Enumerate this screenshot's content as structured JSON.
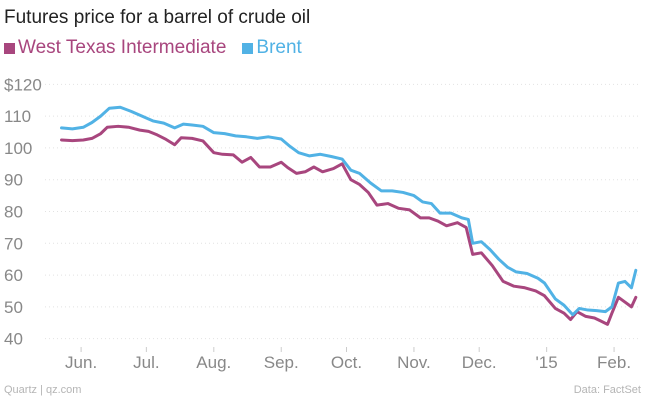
{
  "chart_data": {
    "type": "line",
    "title": "Futures price for a barrel of crude oil",
    "ylim": [
      38,
      122
    ],
    "xlim": [
      "2014-05-20",
      "2015-02-12"
    ],
    "ytick_values": [
      40,
      50,
      60,
      70,
      80,
      90,
      100,
      110,
      120
    ],
    "ytick_labels": [
      "40",
      "50",
      "60",
      "70",
      "80",
      "90",
      "100",
      "110",
      "$120"
    ],
    "xticks": [
      {
        "label": "Jun.",
        "date": "2014-06-01"
      },
      {
        "label": "Jul.",
        "date": "2014-07-01"
      },
      {
        "label": "Aug.",
        "date": "2014-08-01"
      },
      {
        "label": "Sep.",
        "date": "2014-09-01"
      },
      {
        "label": "Oct.",
        "date": "2014-10-01"
      },
      {
        "label": "Nov.",
        "date": "2014-11-01"
      },
      {
        "label": "Dec.",
        "date": "2014-12-01"
      },
      {
        "label": "'15",
        "date": "2015-01-01"
      },
      {
        "label": "Feb.",
        "date": "2015-02-01"
      }
    ],
    "grid": "horizontal",
    "legend_position": "top-left",
    "series": [
      {
        "name": "West Texas Intermediate",
        "color": "#a8467e",
        "points": [
          [
            "2014-05-23",
            102.5
          ],
          [
            "2014-05-28",
            102.3
          ],
          [
            "2014-06-02",
            102.5
          ],
          [
            "2014-06-06",
            103.0
          ],
          [
            "2014-06-10",
            104.5
          ],
          [
            "2014-06-13",
            106.5
          ],
          [
            "2014-06-18",
            106.8
          ],
          [
            "2014-06-23",
            106.5
          ],
          [
            "2014-06-28",
            105.6
          ],
          [
            "2014-07-02",
            105.2
          ],
          [
            "2014-07-06",
            104.1
          ],
          [
            "2014-07-10",
            102.7
          ],
          [
            "2014-07-14",
            101.0
          ],
          [
            "2014-07-17",
            103.2
          ],
          [
            "2014-07-22",
            103.0
          ],
          [
            "2014-07-27",
            102.2
          ],
          [
            "2014-08-01",
            98.5
          ],
          [
            "2014-08-05",
            98.0
          ],
          [
            "2014-08-10",
            97.8
          ],
          [
            "2014-08-14",
            95.5
          ],
          [
            "2014-08-18",
            97.0
          ],
          [
            "2014-08-22",
            94.0
          ],
          [
            "2014-08-27",
            94.0
          ],
          [
            "2014-09-01",
            95.5
          ],
          [
            "2014-09-04",
            93.8
          ],
          [
            "2014-09-08",
            92.0
          ],
          [
            "2014-09-12",
            92.5
          ],
          [
            "2014-09-16",
            94.0
          ],
          [
            "2014-09-20",
            92.5
          ],
          [
            "2014-09-25",
            93.5
          ],
          [
            "2014-09-29",
            95.0
          ],
          [
            "2014-10-03",
            90.0
          ],
          [
            "2014-10-07",
            88.5
          ],
          [
            "2014-10-11",
            86.0
          ],
          [
            "2014-10-15",
            82.0
          ],
          [
            "2014-10-20",
            82.5
          ],
          [
            "2014-10-25",
            81.0
          ],
          [
            "2014-10-30",
            80.5
          ],
          [
            "2014-11-04",
            78.0
          ],
          [
            "2014-11-08",
            78.0
          ],
          [
            "2014-11-12",
            77.0
          ],
          [
            "2014-11-16",
            75.5
          ],
          [
            "2014-11-21",
            76.5
          ],
          [
            "2014-11-25",
            75.0
          ],
          [
            "2014-11-28",
            66.5
          ],
          [
            "2014-12-02",
            67.0
          ],
          [
            "2014-12-07",
            63.0
          ],
          [
            "2014-12-12",
            58.0
          ],
          [
            "2014-12-17",
            56.5
          ],
          [
            "2014-12-22",
            56.0
          ],
          [
            "2014-12-27",
            55.0
          ],
          [
            "2014-12-31",
            53.5
          ],
          [
            "2015-01-05",
            49.5
          ],
          [
            "2015-01-09",
            48.0
          ],
          [
            "2015-01-12",
            46.0
          ],
          [
            "2015-01-15",
            48.5
          ],
          [
            "2015-01-19",
            47.0
          ],
          [
            "2015-01-23",
            46.5
          ],
          [
            "2015-01-26",
            45.5
          ],
          [
            "2015-01-29",
            44.5
          ],
          [
            "2015-01-31",
            48.0
          ],
          [
            "2015-02-03",
            53.0
          ],
          [
            "2015-02-06",
            51.5
          ],
          [
            "2015-02-09",
            50.0
          ],
          [
            "2015-02-11",
            53.0
          ]
        ]
      },
      {
        "name": "Brent",
        "color": "#51b2e5",
        "points": [
          [
            "2014-05-23",
            106.3
          ],
          [
            "2014-05-28",
            106.0
          ],
          [
            "2014-06-02",
            106.5
          ],
          [
            "2014-06-06",
            108.0
          ],
          [
            "2014-06-10",
            110.0
          ],
          [
            "2014-06-14",
            112.5
          ],
          [
            "2014-06-19",
            112.8
          ],
          [
            "2014-06-24",
            111.5
          ],
          [
            "2014-06-29",
            110.0
          ],
          [
            "2014-07-04",
            108.5
          ],
          [
            "2014-07-09",
            107.8
          ],
          [
            "2014-07-14",
            106.3
          ],
          [
            "2014-07-18",
            107.5
          ],
          [
            "2014-07-22",
            107.2
          ],
          [
            "2014-07-27",
            106.8
          ],
          [
            "2014-08-01",
            104.8
          ],
          [
            "2014-08-06",
            104.5
          ],
          [
            "2014-08-11",
            103.8
          ],
          [
            "2014-08-16",
            103.5
          ],
          [
            "2014-08-21",
            103.0
          ],
          [
            "2014-08-26",
            103.5
          ],
          [
            "2014-09-01",
            102.8
          ],
          [
            "2014-09-05",
            100.5
          ],
          [
            "2014-09-09",
            98.5
          ],
          [
            "2014-09-14",
            97.5
          ],
          [
            "2014-09-19",
            98.0
          ],
          [
            "2014-09-24",
            97.3
          ],
          [
            "2014-09-29",
            96.5
          ],
          [
            "2014-10-03",
            93.0
          ],
          [
            "2014-10-07",
            92.0
          ],
          [
            "2014-10-12",
            89.0
          ],
          [
            "2014-10-17",
            86.5
          ],
          [
            "2014-10-22",
            86.5
          ],
          [
            "2014-10-27",
            86.0
          ],
          [
            "2014-11-01",
            85.0
          ],
          [
            "2014-11-05",
            83.0
          ],
          [
            "2014-11-09",
            82.5
          ],
          [
            "2014-11-13",
            79.5
          ],
          [
            "2014-11-18",
            79.5
          ],
          [
            "2014-11-23",
            78.0
          ],
          [
            "2014-11-26",
            77.5
          ],
          [
            "2014-11-28",
            70.0
          ],
          [
            "2014-12-02",
            70.5
          ],
          [
            "2014-12-06",
            68.0
          ],
          [
            "2014-12-10",
            65.0
          ],
          [
            "2014-12-14",
            62.5
          ],
          [
            "2014-12-18",
            61.0
          ],
          [
            "2014-12-23",
            60.5
          ],
          [
            "2014-12-28",
            59.0
          ],
          [
            "2014-12-31",
            57.5
          ],
          [
            "2015-01-05",
            52.5
          ],
          [
            "2015-01-09",
            50.5
          ],
          [
            "2015-01-13",
            47.5
          ],
          [
            "2015-01-16",
            49.5
          ],
          [
            "2015-01-20",
            49.0
          ],
          [
            "2015-01-24",
            48.8
          ],
          [
            "2015-01-28",
            48.5
          ],
          [
            "2015-01-31",
            50.0
          ],
          [
            "2015-02-03",
            57.5
          ],
          [
            "2015-02-06",
            58.0
          ],
          [
            "2015-02-09",
            56.0
          ],
          [
            "2015-02-11",
            61.5
          ]
        ]
      }
    ]
  },
  "footer": {
    "source_left": "Quartz | qz.com",
    "source_right": "Data: FactSet"
  }
}
